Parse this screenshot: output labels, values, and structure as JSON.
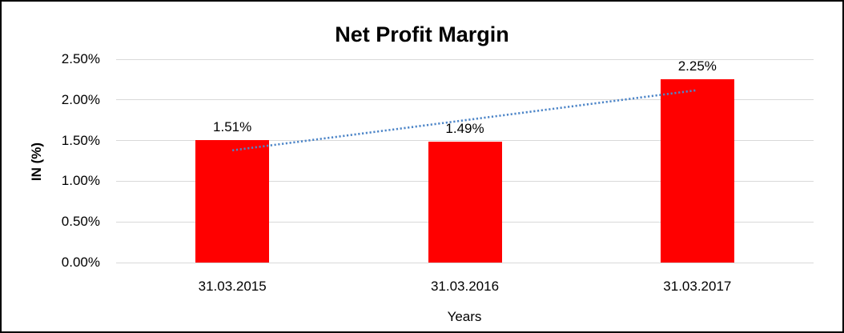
{
  "chart": {
    "title": "Net Profit Margin",
    "y_axis_title": "IN (%)",
    "x_axis_title": "Years"
  },
  "chart_data": {
    "type": "bar",
    "title": "Net Profit Margin",
    "categories": [
      "31.03.2015",
      "31.03.2016",
      "31.03.2017"
    ],
    "values": [
      1.51,
      1.49,
      2.25
    ],
    "data_labels": [
      "1.51%",
      "1.49%",
      "2.25%"
    ],
    "xlabel": "Years",
    "ylabel": "IN (%)",
    "ylim": [
      0,
      2.5
    ],
    "ytick_step": 0.5,
    "ytick_labels": [
      "0.00%",
      "0.50%",
      "1.00%",
      "1.50%",
      "2.00%",
      "2.50%"
    ],
    "grid": true,
    "legend": "none",
    "bar_color": "#ff0000",
    "gridline_color": "#d9d9d9",
    "text_color": "#000000",
    "background_color": "#ffffff",
    "border_color": "#000000",
    "trendline": {
      "type": "linear",
      "style": "dotted",
      "color": "#4e86c8",
      "start_value": 1.38,
      "end_value": 2.12
    }
  }
}
